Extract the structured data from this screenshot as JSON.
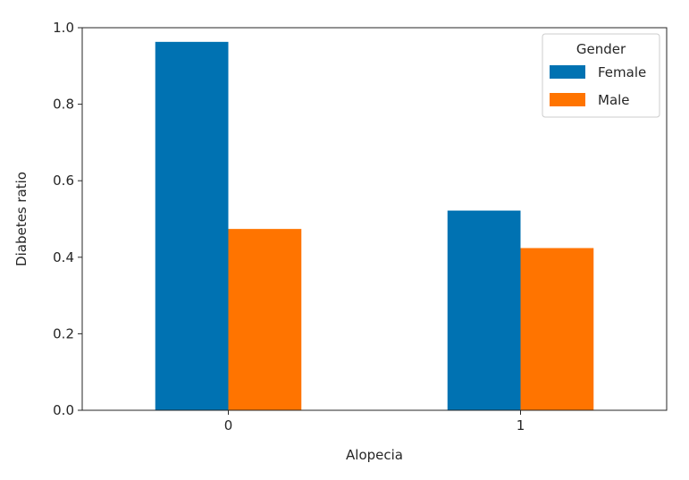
{
  "chart_data": {
    "type": "bar",
    "title": "",
    "xlabel": "Alopecia",
    "ylabel": "Diabetes ratio",
    "categories": [
      "0",
      "1"
    ],
    "series": [
      {
        "name": "Female",
        "values": [
          0.963,
          0.522
        ],
        "color": "#0072b2"
      },
      {
        "name": "Male",
        "values": [
          0.474,
          0.424
        ],
        "color": "#ff7400"
      }
    ],
    "ylim": [
      0,
      1.0
    ],
    "yticks": [
      "0.0",
      "0.2",
      "0.4",
      "0.6",
      "0.8",
      "1.0"
    ],
    "grid": false,
    "legend": {
      "title": "Gender",
      "placement": "top-right"
    }
  }
}
